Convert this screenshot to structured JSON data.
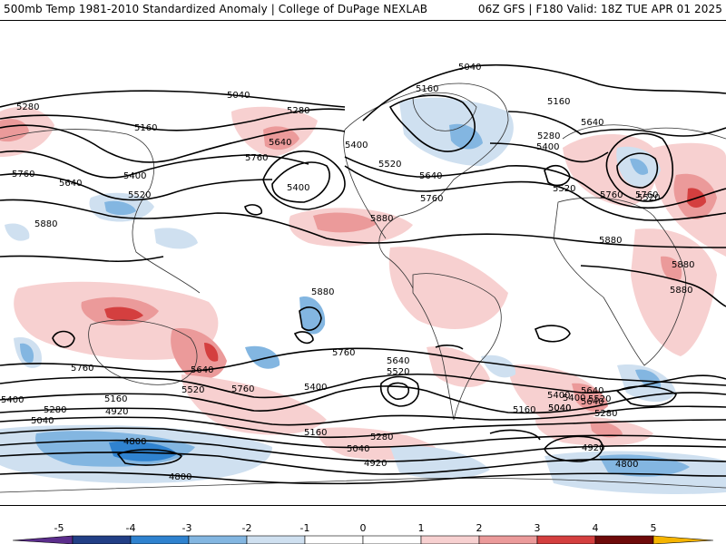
{
  "header": {
    "left": "500mb Temp 1981-2010 Standardized Anomaly | College of DuPage NEXLAB",
    "right": "06Z GFS | F180 Valid: 18Z TUE APR 01 2025"
  },
  "colors": {
    "neg5": "#5b2d8c",
    "neg4": "#223f86",
    "neg3": "#2f82cf",
    "neg2": "#83b6e1",
    "neg1": "#cfe0f0",
    "zero": "#ffffff",
    "pos1": "#f7d0d0",
    "pos2": "#eb9a9a",
    "pos3": "#d43f3f",
    "pos4": "#a31a1a",
    "pos5": "#6e0a0a",
    "pos_over": "#f5b400",
    "contour": "#000000",
    "coast": "#333333"
  },
  "colorbar": {
    "ticks": [
      "-5",
      "-4",
      "-3",
      "-2",
      "-1",
      "0",
      "1",
      "2",
      "3",
      "4",
      "5"
    ]
  },
  "map": {
    "height_labels": [
      "5040",
      "5040",
      "5160",
      "5160",
      "5280",
      "5280",
      "5160",
      "5280",
      "5400",
      "5640",
      "5640",
      "5760",
      "5640",
      "5520",
      "5400",
      "5760",
      "5400",
      "5520",
      "5400",
      "5640",
      "5760",
      "5520",
      "5880",
      "5880",
      "5760",
      "5880",
      "5880",
      "5880",
      "5880",
      "5760",
      "5640",
      "5760",
      "5520",
      "5400",
      "5640",
      "5520",
      "5760",
      "5760",
      "5400",
      "5640",
      "5520",
      "5400",
      "5160",
      "5040",
      "5280",
      "5280",
      "5160",
      "5040",
      "4920",
      "4800",
      "4800",
      "5160",
      "5040",
      "4920",
      "4920",
      "4800",
      "5040",
      "5280"
    ]
  }
}
